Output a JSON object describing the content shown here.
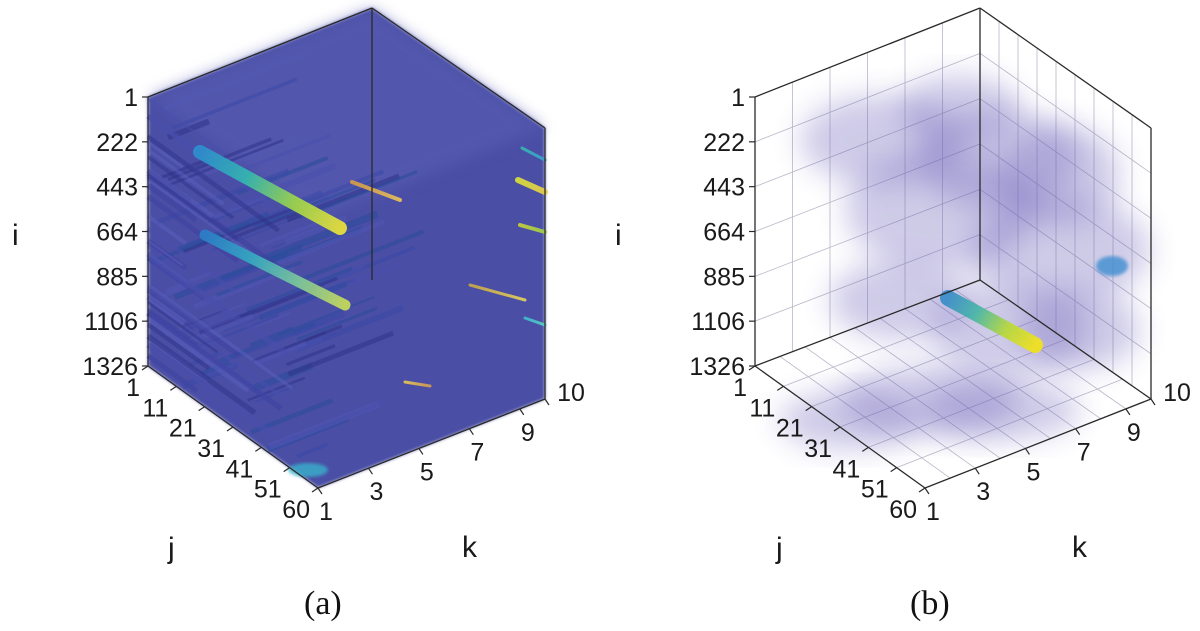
{
  "chart_data": [
    {
      "type": "heatmap",
      "subtype": "3d-volume",
      "caption": "(a)",
      "axes": {
        "i": {
          "label": "i",
          "ticks": [
            "1",
            "222",
            "443",
            "664",
            "885",
            "1106",
            "1326"
          ],
          "range": [
            1,
            1326
          ]
        },
        "j": {
          "label": "j",
          "ticks": [
            "1",
            "11",
            "21",
            "31",
            "41",
            "51",
            "60"
          ],
          "range": [
            1,
            60
          ]
        },
        "k": {
          "label": "k",
          "ticks": [
            "1",
            "3",
            "5",
            "7",
            "9",
            "10"
          ],
          "range": [
            1,
            10
          ]
        }
      },
      "grid": false,
      "fill": "dense",
      "colormap": [
        "#3b3f9e",
        "#3f62c2",
        "#2c9fd0",
        "#3fc08e",
        "#c9dd2a",
        "#f4e61e"
      ],
      "hotspots": [
        {
          "i": [
            250,
            600
          ],
          "j": [
            1,
            20
          ],
          "k": [
            1,
            3
          ],
          "level": "high"
        },
        {
          "i": [
            600,
            1000
          ],
          "j": [
            1,
            25
          ],
          "k": [
            1,
            3
          ],
          "level": "high"
        },
        {
          "i": [
            350,
            450
          ],
          "j": [
            1,
            2
          ],
          "k": [
            9,
            10
          ],
          "level": "high"
        },
        {
          "i": [
            900,
            1050
          ],
          "j": [
            1,
            3
          ],
          "k": [
            8,
            9
          ],
          "level": "medium"
        }
      ]
    },
    {
      "type": "heatmap",
      "subtype": "3d-volume",
      "caption": "(b)",
      "axes": {
        "i": {
          "label": "i",
          "ticks": [
            "1",
            "222",
            "443",
            "664",
            "885",
            "1106",
            "1326"
          ],
          "range": [
            1,
            1326
          ]
        },
        "j": {
          "label": "j",
          "ticks": [
            "1",
            "11",
            "21",
            "31",
            "41",
            "51",
            "60"
          ],
          "range": [
            1,
            60
          ]
        },
        "k": {
          "label": "k",
          "ticks": [
            "1",
            "3",
            "5",
            "7",
            "9",
            "10"
          ],
          "range": [
            1,
            10
          ]
        }
      },
      "grid": true,
      "fill": "sparse",
      "colormap": [
        "#6c5fb8",
        "#3f62c2",
        "#2c9fd0",
        "#3fc08e",
        "#c9dd2a",
        "#f4e61e"
      ],
      "hotspots": [
        {
          "i": [
            1250,
            1326
          ],
          "j": [
            1,
            15
          ],
          "k": [
            1,
            3
          ],
          "level": "high"
        },
        {
          "i": [
            800,
            900
          ],
          "j": [
            1,
            2
          ],
          "k": [
            8,
            10
          ],
          "level": "medium"
        }
      ]
    }
  ]
}
